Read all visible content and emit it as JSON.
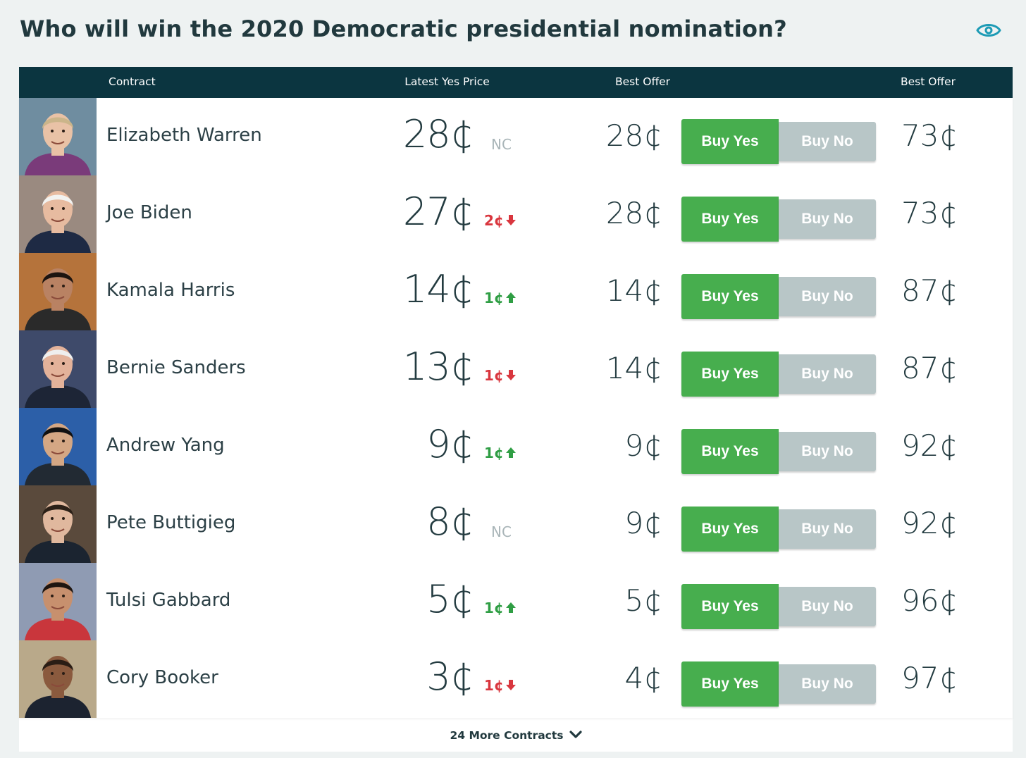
{
  "page": {
    "title": "Who will win the 2020 Democratic presidential nomination?",
    "watch_icon": "eye-icon"
  },
  "table": {
    "headers": {
      "contract": "Contract",
      "latest_yes_price": "Latest Yes Price",
      "best_offer_yes": "Best Offer",
      "best_offer_no": "Best Offer"
    },
    "rows": [
      {
        "name": "Elizabeth Warren",
        "price": "28¢",
        "change": "NC",
        "direction": "none",
        "best_yes": "28¢",
        "buy_yes": "Buy Yes",
        "buy_no": "Buy No",
        "best_no": "73¢"
      },
      {
        "name": "Joe Biden",
        "price": "27¢",
        "change": "2¢",
        "direction": "down",
        "best_yes": "28¢",
        "buy_yes": "Buy Yes",
        "buy_no": "Buy No",
        "best_no": "73¢"
      },
      {
        "name": "Kamala Harris",
        "price": "14¢",
        "change": "1¢",
        "direction": "up",
        "best_yes": "14¢",
        "buy_yes": "Buy Yes",
        "buy_no": "Buy No",
        "best_no": "87¢"
      },
      {
        "name": "Bernie Sanders",
        "price": "13¢",
        "change": "1¢",
        "direction": "down",
        "best_yes": "14¢",
        "buy_yes": "Buy Yes",
        "buy_no": "Buy No",
        "best_no": "87¢"
      },
      {
        "name": "Andrew Yang",
        "price": "9¢",
        "change": "1¢",
        "direction": "up",
        "best_yes": "9¢",
        "buy_yes": "Buy Yes",
        "buy_no": "Buy No",
        "best_no": "92¢"
      },
      {
        "name": "Pete Buttigieg",
        "price": "8¢",
        "change": "NC",
        "direction": "none",
        "best_yes": "9¢",
        "buy_yes": "Buy Yes",
        "buy_no": "Buy No",
        "best_no": "92¢"
      },
      {
        "name": "Tulsi Gabbard",
        "price": "5¢",
        "change": "1¢",
        "direction": "up",
        "best_yes": "5¢",
        "buy_yes": "Buy Yes",
        "buy_no": "Buy No",
        "best_no": "96¢"
      },
      {
        "name": "Cory Booker",
        "price": "3¢",
        "change": "1¢",
        "direction": "down",
        "best_yes": "4¢",
        "buy_yes": "Buy Yes",
        "buy_no": "Buy No",
        "best_no": "97¢"
      }
    ],
    "more_contracts": "24 More Contracts"
  },
  "colors": {
    "header_bg": "#0b3540",
    "buy_yes": "#47ae4e",
    "buy_no": "#b8c6c7",
    "up": "#2f9e44",
    "down": "#d9363e",
    "nc": "#a9b5b8",
    "accent_icon": "#1d9bb5"
  },
  "photo_styles": [
    {
      "bg": "#6f8da0",
      "skin": "#e9c2a6",
      "hair": "#cbb58a",
      "shirt": "#7a3b7a"
    },
    {
      "bg": "#9a8a80",
      "skin": "#e7bba0",
      "hair": "#f2f2f0",
      "shirt": "#1e2a44"
    },
    {
      "bg": "#b5733b",
      "skin": "#b98263",
      "hair": "#1c1410",
      "shirt": "#2a2a2a"
    },
    {
      "bg": "#3e4a6a",
      "skin": "#e3b29a",
      "hair": "#efefee",
      "shirt": "#1d2536"
    },
    {
      "bg": "#2c5fa8",
      "skin": "#d4a784",
      "hair": "#111111",
      "shirt": "#222a33"
    },
    {
      "bg": "#5a4a3c",
      "skin": "#e0b89e",
      "hair": "#2b2017",
      "shirt": "#1b2430"
    },
    {
      "bg": "#8f9bb3",
      "skin": "#c7906e",
      "hair": "#1e1510",
      "shirt": "#c9363c"
    },
    {
      "bg": "#b9a98a",
      "skin": "#8a5a3e",
      "hair": "#2a1d15",
      "shirt": "#1c2330"
    }
  ]
}
